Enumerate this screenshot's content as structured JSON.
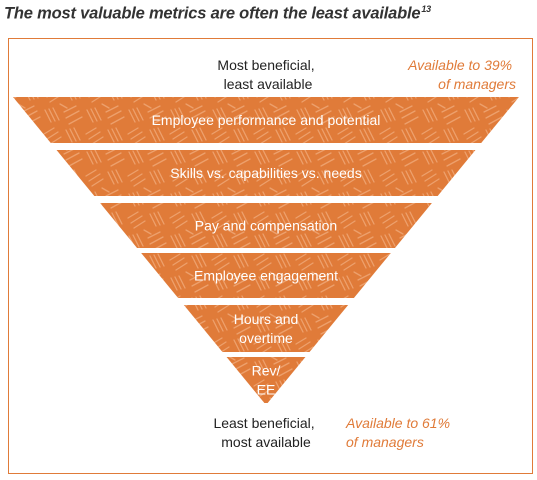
{
  "header": {
    "title": "The most valuable metrics are often the least available",
    "footnote": "13"
  },
  "top": {
    "beneficial_line1": "Most beneficial,",
    "beneficial_line2": "least available",
    "available_line1": "Available to 39%",
    "available_line2": "of managers"
  },
  "bottom": {
    "beneficial_line1": "Least beneficial,",
    "beneficial_line2": "most available",
    "available_line1": "Available to 61%",
    "available_line2": "of managers"
  },
  "levels": [
    {
      "lines": [
        "Employee performance and potential"
      ]
    },
    {
      "lines": [
        "Skills vs. capabilities vs.  needs"
      ]
    },
    {
      "lines": [
        "Pay and compensation"
      ]
    },
    {
      "lines": [
        "Employee engagement"
      ]
    },
    {
      "lines": [
        "Hours and",
        "overtime"
      ]
    },
    {
      "lines": [
        "Rev/",
        "EE"
      ]
    }
  ],
  "colors": {
    "fill": "#e07b39",
    "pattern_stroke": "#eda06c",
    "accent": "#e07b39",
    "text_dark": "#222222",
    "text_light": "#ffffff"
  }
}
